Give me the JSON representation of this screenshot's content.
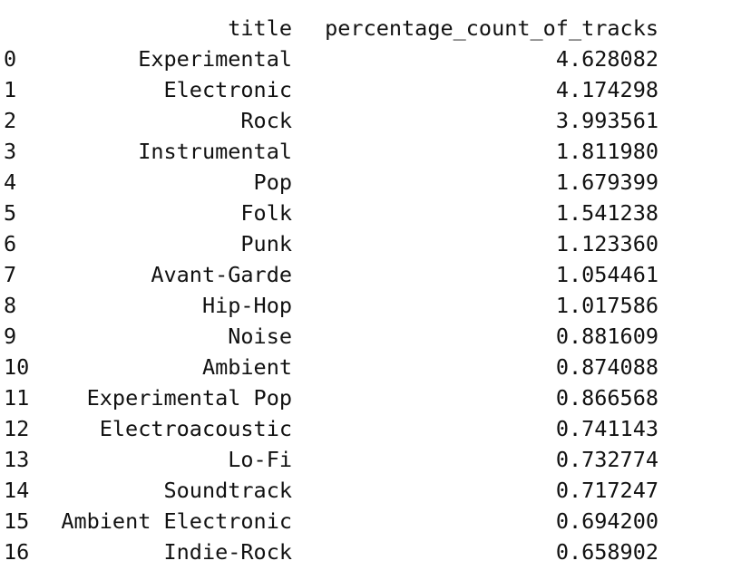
{
  "table": {
    "columns": [
      "title",
      "percentage_count_of_tracks"
    ],
    "rows": [
      {
        "index": "0",
        "title": "Experimental",
        "pct": "4.628082"
      },
      {
        "index": "1",
        "title": "Electronic",
        "pct": "4.174298"
      },
      {
        "index": "2",
        "title": "Rock",
        "pct": "3.993561"
      },
      {
        "index": "3",
        "title": "Instrumental",
        "pct": "1.811980"
      },
      {
        "index": "4",
        "title": "Pop",
        "pct": "1.679399"
      },
      {
        "index": "5",
        "title": "Folk",
        "pct": "1.541238"
      },
      {
        "index": "6",
        "title": "Punk",
        "pct": "1.123360"
      },
      {
        "index": "7",
        "title": "Avant-Garde",
        "pct": "1.054461"
      },
      {
        "index": "8",
        "title": "Hip-Hop",
        "pct": "1.017586"
      },
      {
        "index": "9",
        "title": "Noise",
        "pct": "0.881609"
      },
      {
        "index": "10",
        "title": "Ambient",
        "pct": "0.874088"
      },
      {
        "index": "11",
        "title": "Experimental Pop",
        "pct": "0.866568"
      },
      {
        "index": "12",
        "title": "Electroacoustic",
        "pct": "0.741143"
      },
      {
        "index": "13",
        "title": "Lo-Fi",
        "pct": "0.732774"
      },
      {
        "index": "14",
        "title": "Soundtrack",
        "pct": "0.717247"
      },
      {
        "index": "15",
        "title": "Ambient Electronic",
        "pct": "0.694200"
      },
      {
        "index": "16",
        "title": "Indie-Rock",
        "pct": "0.658902"
      }
    ]
  }
}
